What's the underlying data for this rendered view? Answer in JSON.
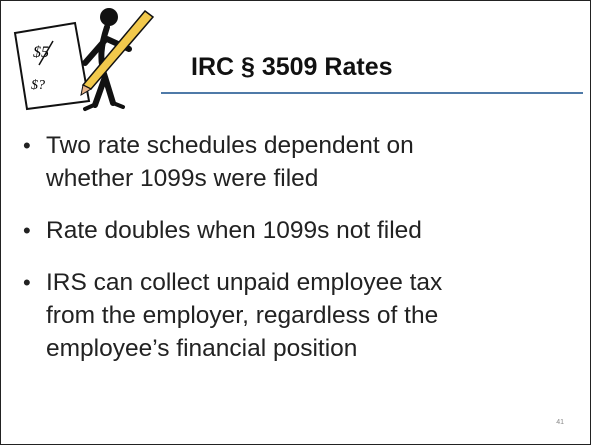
{
  "clipart": {
    "labels": [
      "$5",
      "$?"
    ]
  },
  "title": "IRC § 3509 Rates",
  "bullets": [
    [
      "Two rate schedules dependent on",
      "whether 1099s were filed"
    ],
    [
      "Rate doubles when 1099s not filed"
    ],
    [
      "IRS can collect unpaid employee tax",
      "from the employer, regardless of the",
      "employee’s financial position"
    ]
  ],
  "page_number": "41"
}
